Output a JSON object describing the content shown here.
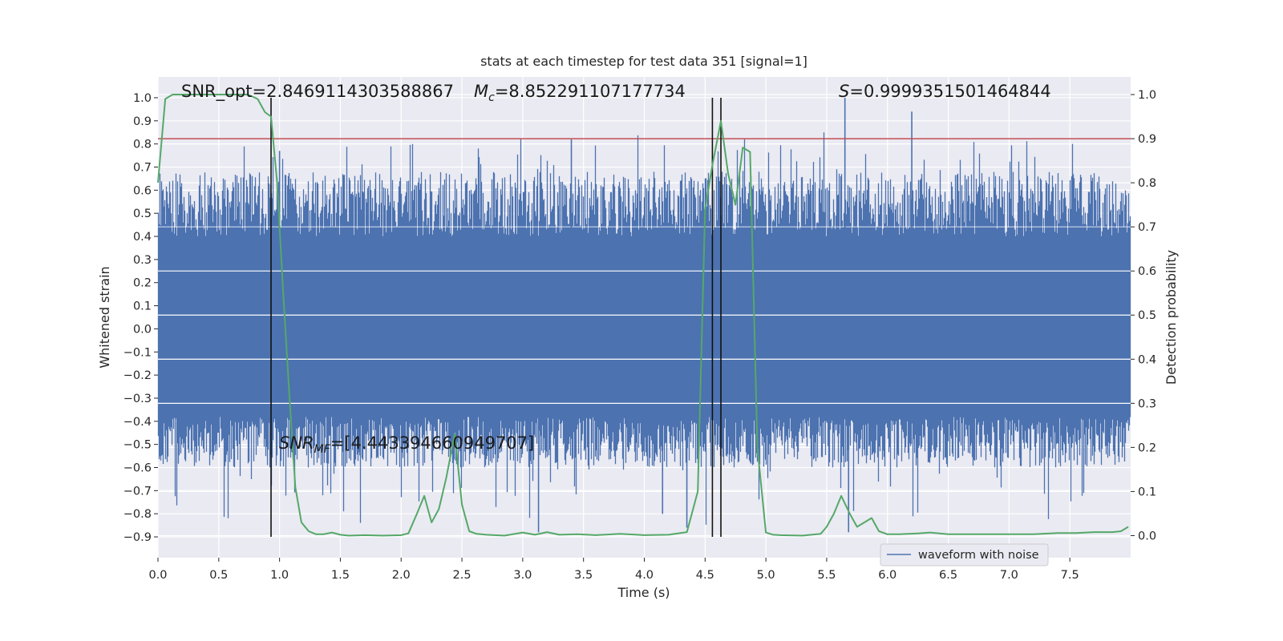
{
  "chart_data": {
    "type": "line",
    "title": "stats at each timestep for test data 351 [signal=1]",
    "xlabel": "Time (s)",
    "ylabel_left": "Whitened strain",
    "ylabel_right": "Detection probability",
    "xlim": [
      0.0,
      8.0
    ],
    "ylim_left": [
      -0.99,
      1.09
    ],
    "ylim_right": [
      -0.05,
      1.04
    ],
    "x_ticks": [
      "0.0",
      "0.5",
      "1.0",
      "1.5",
      "2.0",
      "2.5",
      "3.0",
      "3.5",
      "4.0",
      "4.5",
      "5.0",
      "5.5",
      "6.0",
      "6.5",
      "7.0",
      "7.5"
    ],
    "y_ticks_left": [
      "1.0",
      "0.9",
      "0.8",
      "0.7",
      "0.6",
      "0.5",
      "0.4",
      "0.3",
      "0.2",
      "0.1",
      "0.0",
      "−0.1",
      "−0.2",
      "−0.3",
      "−0.4",
      "−0.5",
      "−0.6",
      "−0.7",
      "−0.8",
      "−0.9"
    ],
    "y_ticks_right": [
      "1.0",
      "0.9",
      "0.8",
      "0.7",
      "0.6",
      "0.5",
      "0.4",
      "0.3",
      "0.2",
      "0.1",
      "0.0"
    ],
    "grid": true,
    "legend_position": "lower-right",
    "annotations": {
      "snr_opt": "SNR_opt=2.8469114303588867",
      "mc_symbol": "M",
      "mc_sub": "c",
      "mc_value": "=8.852291107177734",
      "s_symbol": "S",
      "s_value": "=0.9999351501464844",
      "snrmf_symbol": "SNR",
      "snrmf_sub": "MF",
      "snrmf_value": "=[4.443394660949707]"
    },
    "threshold": {
      "axis": "right",
      "value": 0.9,
      "color": "#c44e52"
    },
    "vertical_lines": [
      0.93,
      4.56,
      4.63
    ],
    "series": [
      {
        "name": "waveform with noise",
        "axis": "left",
        "color": "#4c72b0",
        "kind": "noise-band",
        "core_range": [
          -0.38,
          0.4
        ],
        "peak_range": [
          -0.88,
          1.0
        ],
        "n_bins": 1213
      },
      {
        "name": "",
        "axis": "right",
        "color": "#55a868",
        "x": [
          0.0,
          0.06,
          0.12,
          0.18,
          0.25,
          0.35,
          0.45,
          0.55,
          0.65,
          0.74,
          0.82,
          0.88,
          0.93,
          0.98,
          1.03,
          1.08,
          1.13,
          1.18,
          1.24,
          1.3,
          1.36,
          1.43,
          1.5,
          1.57,
          1.7,
          1.85,
          2.0,
          2.06,
          2.13,
          2.19,
          2.25,
          2.31,
          2.37,
          2.44,
          2.5,
          2.56,
          2.62,
          2.7,
          2.85,
          3.0,
          3.1,
          3.2,
          3.3,
          3.45,
          3.6,
          3.8,
          4.0,
          4.2,
          4.35,
          4.44,
          4.5,
          4.56,
          4.63,
          4.69,
          4.75,
          4.81,
          4.87,
          4.93,
          5.0,
          5.06,
          5.12,
          5.3,
          5.45,
          5.5,
          5.56,
          5.62,
          5.69,
          5.75,
          5.81,
          5.87,
          5.93,
          6.0,
          6.1,
          6.25,
          6.35,
          6.5,
          6.7,
          7.0,
          7.2,
          7.4,
          7.55,
          7.7,
          7.85,
          7.92,
          7.98
        ],
        "values": [
          0.8,
          0.99,
          1.0,
          1.0,
          1.0,
          1.0,
          1.0,
          1.0,
          1.0,
          1.0,
          0.99,
          0.96,
          0.95,
          0.8,
          0.55,
          0.32,
          0.11,
          0.03,
          0.01,
          0.003,
          0.003,
          0.007,
          0.002,
          0.0,
          0.001,
          0.0,
          0.001,
          0.005,
          0.05,
          0.09,
          0.03,
          0.06,
          0.13,
          0.23,
          0.07,
          0.01,
          0.004,
          0.002,
          0.0,
          0.007,
          0.002,
          0.008,
          0.002,
          0.003,
          0.001,
          0.004,
          0.001,
          0.002,
          0.008,
          0.1,
          0.74,
          0.84,
          0.94,
          0.82,
          0.75,
          0.88,
          0.87,
          0.2,
          0.007,
          0.002,
          0.001,
          0.0,
          0.004,
          0.02,
          0.05,
          0.09,
          0.05,
          0.02,
          0.03,
          0.04,
          0.01,
          0.003,
          0.003,
          0.005,
          0.007,
          0.003,
          0.003,
          0.003,
          0.003,
          0.006,
          0.006,
          0.008,
          0.008,
          0.01,
          0.02
        ]
      }
    ]
  }
}
